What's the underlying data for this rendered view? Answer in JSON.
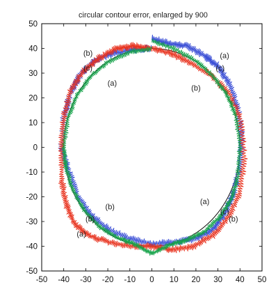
{
  "chart_data": {
    "type": "line",
    "title": "circular contour error, enlarged by 900",
    "xlabel": "",
    "ylabel": "",
    "xlim": [
      -50,
      50
    ],
    "ylim": [
      -50,
      50
    ],
    "x_ticks": [
      -50,
      -40,
      -30,
      -20,
      -10,
      0,
      10,
      20,
      30,
      40,
      50
    ],
    "y_ticks": [
      -50,
      -40,
      -30,
      -20,
      -10,
      0,
      10,
      20,
      30,
      40,
      50
    ],
    "grid": false,
    "legend": "none",
    "series": [
      {
        "key": "reference",
        "color": "#000000",
        "radius": 40,
        "center": [
          0,
          0
        ]
      },
      {
        "key": "a",
        "color": "#3b4fd6",
        "x": [
          0,
          8,
          16,
          24,
          30,
          35,
          39,
          41,
          40,
          37,
          33,
          28,
          20,
          10,
          0,
          -10,
          -20,
          -28,
          -34,
          -38,
          -41,
          -40,
          -37,
          -32,
          -26,
          -18,
          -9,
          0
        ],
        "y": [
          44,
          42,
          41,
          37,
          33,
          26,
          16,
          4,
          -8,
          -19,
          -27,
          -33,
          -37,
          -38.5,
          -39,
          -37,
          -33,
          -27,
          -19,
          -9,
          0,
          12,
          22,
          30,
          35,
          38,
          39.5,
          40
        ]
      },
      {
        "key": "b",
        "color": "#e8321e",
        "x": [
          0,
          -8,
          -16,
          -24,
          -31,
          -37,
          -40,
          -41,
          -41,
          -39,
          -35,
          -28,
          -19,
          -9,
          0,
          9,
          19,
          28,
          35,
          40,
          42,
          40,
          35,
          27,
          18,
          9,
          0
        ],
        "y": [
          40,
          41,
          40,
          36,
          31,
          23,
          12,
          0,
          -13,
          -23,
          -31,
          -36,
          -38.5,
          -40,
          -40,
          -41.5,
          -40,
          -35.5,
          -28,
          -18,
          -4,
          12,
          22,
          29,
          34,
          38,
          40
        ]
      },
      {
        "key": "c",
        "color": "#16a34a",
        "x": [
          0,
          10,
          20,
          28,
          34,
          38,
          40,
          39,
          36,
          31,
          24,
          16,
          8,
          0,
          -8,
          -16,
          -24,
          -31,
          -36,
          -39,
          -40,
          -38,
          -34,
          -28,
          -20,
          -10,
          0
        ],
        "y": [
          43,
          40,
          35,
          28.5,
          21.5,
          13,
          0,
          -12,
          -21,
          -28,
          -34,
          -37.5,
          -39.5,
          -43,
          -39,
          -36.5,
          -32,
          -25,
          -17,
          -8,
          0,
          12,
          21,
          28.5,
          34.5,
          38.5,
          40
        ]
      }
    ],
    "annotations": [
      {
        "text": "(a)",
        "x": 33,
        "y": 36
      },
      {
        "text": "(c)",
        "x": 31,
        "y": 31
      },
      {
        "text": "(b)",
        "x": 20,
        "y": 23
      },
      {
        "text": "(b)",
        "x": -29,
        "y": 37
      },
      {
        "text": "(c)",
        "x": -29,
        "y": 31
      },
      {
        "text": "(a)",
        "x": -18,
        "y": 25
      },
      {
        "text": "(b)",
        "x": -19,
        "y": -25
      },
      {
        "text": "(b)",
        "x": -28,
        "y": -30
      },
      {
        "text": "(a)",
        "x": -32,
        "y": -36
      },
      {
        "text": "(a)",
        "x": 24,
        "y": -23
      },
      {
        "text": "(c)",
        "x": 33,
        "y": -27
      },
      {
        "text": "(b)",
        "x": 37,
        "y": -30
      }
    ]
  }
}
